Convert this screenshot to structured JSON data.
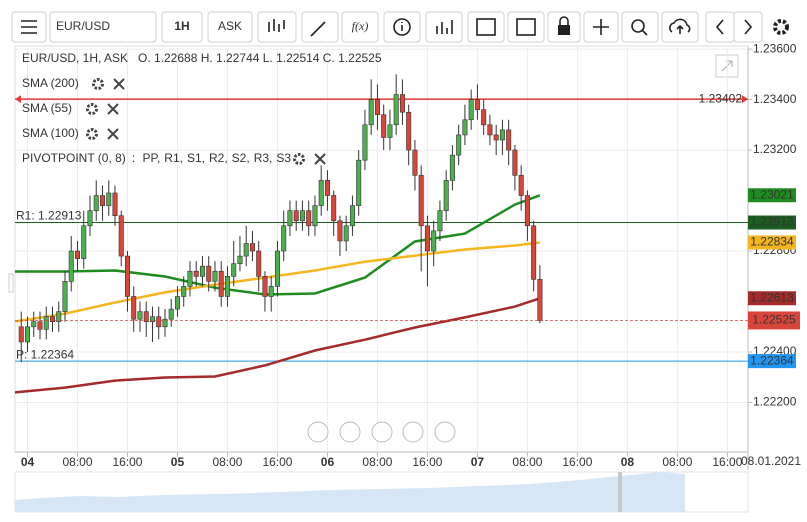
{
  "toolbar": {
    "symbol": "EUR/USD",
    "timeframe": "1H",
    "price_side": "ASK",
    "fx": "f(x)"
  },
  "chart_data": {
    "type": "candlestick",
    "title": "EUR/USD, 1H, ASK",
    "ohlc_text": "O. 1.22688 H. 1.22744 L. 1.22514 C. 1.22525",
    "up_color": "#4caf50",
    "down_color": "#d9453b",
    "x": [
      -1,
      0,
      1,
      2,
      3,
      4,
      5,
      6,
      7,
      8,
      9,
      10,
      11,
      12,
      13,
      14,
      15,
      16,
      17,
      18,
      19,
      20,
      21,
      22,
      23,
      24,
      25,
      26,
      27,
      28,
      29,
      30,
      31,
      32,
      33,
      34,
      35,
      36,
      37,
      38,
      39,
      40,
      41,
      42,
      43,
      44,
      45,
      46,
      47,
      48,
      49,
      50,
      51,
      52,
      53,
      54,
      55,
      56,
      57,
      58,
      59,
      60,
      61,
      62,
      63,
      64,
      65,
      66,
      67,
      68,
      69,
      70,
      71,
      72,
      73,
      74,
      75,
      76,
      77,
      78,
      79,
      80,
      81,
      82
    ],
    "open": [
      1.225,
      1.2244,
      1.225,
      1.2252,
      1.2249,
      1.2254,
      1.2252,
      1.2256,
      1.2268,
      1.228,
      1.2277,
      1.229,
      1.2296,
      1.2302,
      1.2298,
      1.2303,
      1.2294,
      1.2278,
      1.2262,
      1.2253,
      1.2256,
      1.2252,
      1.2254,
      1.225,
      1.2253,
      1.2257,
      1.2262,
      1.2266,
      1.2272,
      1.227,
      1.2274,
      1.2268,
      1.2272,
      1.2262,
      1.227,
      1.2275,
      1.2278,
      1.2283,
      1.228,
      1.227,
      1.2262,
      1.2266,
      1.228,
      1.229,
      1.2296,
      1.2292,
      1.2296,
      1.229,
      1.2298,
      1.2308,
      1.2302,
      1.2292,
      1.2284,
      1.229,
      1.2298,
      1.2316,
      1.233,
      1.234,
      1.2334,
      1.2325,
      1.233,
      1.2342,
      1.2335,
      1.232,
      1.231,
      1.229,
      1.228,
      1.2288,
      1.2296,
      1.2308,
      1.2318,
      1.2326,
      1.2332,
      1.234,
      1.2336,
      1.233,
      1.2326,
      1.2324,
      1.2328,
      1.232,
      1.231,
      1.2302,
      1.229,
      1.22688
    ],
    "high": [
      1.2256,
      1.2254,
      1.2256,
      1.2256,
      1.2258,
      1.2258,
      1.226,
      1.2272,
      1.2286,
      1.2284,
      1.2296,
      1.2302,
      1.2308,
      1.2306,
      1.2308,
      1.2306,
      1.2296,
      1.228,
      1.2266,
      1.226,
      1.226,
      1.2258,
      1.2258,
      1.2257,
      1.2261,
      1.2266,
      1.227,
      1.2276,
      1.2276,
      1.2278,
      1.2278,
      1.2276,
      1.2276,
      1.2274,
      1.2284,
      1.2286,
      1.229,
      1.2288,
      1.2284,
      1.2272,
      1.227,
      1.2284,
      1.2296,
      1.23,
      1.23,
      1.23,
      1.23,
      1.2302,
      1.2314,
      1.2312,
      1.2304,
      1.2294,
      1.2294,
      1.2302,
      1.232,
      1.2336,
      1.2348,
      1.2346,
      1.2338,
      1.2336,
      1.235,
      1.2348,
      1.2338,
      1.2324,
      1.2314,
      1.2294,
      1.2292,
      1.23,
      1.2312,
      1.2322,
      1.233,
      1.2338,
      1.2344,
      1.2346,
      1.234,
      1.2334,
      1.233,
      1.2332,
      1.2332,
      1.2322,
      1.2314,
      1.2304,
      1.2292,
      1.22744
    ],
    "low": [
      1.2236,
      1.224,
      1.2246,
      1.2245,
      1.2245,
      1.2248,
      1.2248,
      1.2252,
      1.2264,
      1.2272,
      1.2273,
      1.2286,
      1.2292,
      1.2292,
      1.2294,
      1.229,
      1.2274,
      1.2256,
      1.2248,
      1.2248,
      1.2246,
      1.2244,
      1.2245,
      1.2246,
      1.225,
      1.2254,
      1.2258,
      1.2262,
      1.2266,
      1.2266,
      1.2264,
      1.2264,
      1.2258,
      1.2258,
      1.2266,
      1.2272,
      1.2274,
      1.2276,
      1.2264,
      1.2256,
      1.2256,
      1.2262,
      1.2276,
      1.2286,
      1.2288,
      1.2288,
      1.2286,
      1.2286,
      1.2294,
      1.2296,
      1.2286,
      1.2278,
      1.228,
      1.2286,
      1.2294,
      1.2312,
      1.2326,
      1.2328,
      1.232,
      1.232,
      1.2326,
      1.233,
      1.2314,
      1.2304,
      1.2272,
      1.2266,
      1.2274,
      1.2284,
      1.2292,
      1.2304,
      1.2314,
      1.2322,
      1.2328,
      1.2332,
      1.2326,
      1.2322,
      1.2318,
      1.2318,
      1.2314,
      1.2304,
      1.2296,
      1.2284,
      1.2264,
      1.22514
    ],
    "close": [
      1.2244,
      1.225,
      1.2252,
      1.2249,
      1.2254,
      1.2252,
      1.2256,
      1.2268,
      1.228,
      1.2277,
      1.229,
      1.2296,
      1.2302,
      1.2298,
      1.2303,
      1.2294,
      1.2278,
      1.2262,
      1.2253,
      1.2256,
      1.2252,
      1.2254,
      1.225,
      1.2253,
      1.2257,
      1.2262,
      1.2266,
      1.2272,
      1.227,
      1.2274,
      1.2268,
      1.2272,
      1.2262,
      1.227,
      1.2275,
      1.2278,
      1.2283,
      1.228,
      1.227,
      1.2262,
      1.2266,
      1.228,
      1.229,
      1.2296,
      1.2292,
      1.2296,
      1.229,
      1.2298,
      1.2308,
      1.2302,
      1.2292,
      1.2284,
      1.229,
      1.2298,
      1.2316,
      1.233,
      1.234,
      1.2334,
      1.2325,
      1.233,
      1.2342,
      1.2335,
      1.232,
      1.231,
      1.229,
      1.228,
      1.2288,
      1.2296,
      1.2308,
      1.2318,
      1.2326,
      1.2332,
      1.234,
      1.2336,
      1.233,
      1.2326,
      1.2324,
      1.2328,
      1.232,
      1.231,
      1.2302,
      1.229,
      1.22688,
      1.22525
    ],
    "current_color": "#d9453b",
    "series": [
      {
        "name": "SMA (200)",
        "color": "#a52a2a",
        "x": [
          -2,
          6,
          14,
          22,
          30,
          38,
          46,
          54,
          62,
          70,
          78,
          82
        ],
        "values": [
          1.2224,
          1.22259,
          1.22287,
          1.22299,
          1.22303,
          1.22347,
          1.22406,
          1.22449,
          1.22497,
          1.22537,
          1.2258,
          1.22613
        ]
      },
      {
        "name": "SMA (55)",
        "color": "#1e8c1e",
        "x": [
          -2,
          6,
          14,
          22,
          30,
          38,
          46,
          54,
          62,
          70,
          78,
          82
        ],
        "values": [
          1.22719,
          1.22719,
          1.22723,
          1.22699,
          1.22655,
          1.22628,
          1.22632,
          1.22695,
          1.22838,
          1.22869,
          1.22984,
          1.23021
        ]
      },
      {
        "name": "SMA (100)",
        "color": "#f5b51f",
        "x": [
          -2,
          6,
          14,
          22,
          30,
          38,
          46,
          54,
          62,
          70,
          78,
          82
        ],
        "values": [
          1.22521,
          1.22552,
          1.22596,
          1.22636,
          1.22667,
          1.22695,
          1.22723,
          1.22758,
          1.22782,
          1.22806,
          1.22822,
          1.22834
        ]
      }
    ],
    "pivot": {
      "name": "PIVOTPOINT (0, 8)",
      "items": [
        {
          "text": ": ",
          "color": "#333333"
        },
        {
          "text": "PP,",
          "color": "#2196f3"
        },
        {
          "text": "R1,",
          "color": "#1b5e20"
        },
        {
          "text": "S1,",
          "color": "#e53935"
        },
        {
          "text": "R2,",
          "color": "#e53935"
        },
        {
          "text": "S2,",
          "color": "#ff9800"
        },
        {
          "text": "R3,",
          "color": "#ff9800"
        },
        {
          "text": "S3",
          "color": "#e6b800"
        }
      ]
    },
    "levels": [
      {
        "value": 1.23402,
        "color": "#e53935"
      },
      {
        "label": "R1: 1.22913",
        "value": 1.22913,
        "color": "#1b5e20"
      },
      {
        "label": "P: 1.22364",
        "value": 1.22364,
        "color": "#2196f3"
      }
    ],
    "xlim": [
      -2,
      115.3
    ],
    "xticks": [
      {
        "value": 0,
        "label": "04"
      },
      {
        "value": 8,
        "label": "08:00"
      },
      {
        "value": 16,
        "label": "16:00"
      },
      {
        "value": 24,
        "label": "05"
      },
      {
        "value": 32,
        "label": "08:00"
      },
      {
        "value": 40,
        "label": "16:00"
      },
      {
        "value": 48,
        "label": "06"
      },
      {
        "value": 56,
        "label": "08:00"
      },
      {
        "value": 64,
        "label": "16:00"
      },
      {
        "value": 72,
        "label": "07"
      },
      {
        "value": 80,
        "label": "08:00"
      },
      {
        "value": 88,
        "label": "16:00"
      },
      {
        "value": 96,
        "label": "08"
      },
      {
        "value": 104,
        "label": "08:00"
      },
      {
        "value": 112,
        "label": "16:00"
      }
    ],
    "date_label": "08.01.2021",
    "ylim": [
      1.22,
      1.2364
    ],
    "yticks": [
      {
        "value": 1.236,
        "label": "1.23600"
      },
      {
        "value": 1.234,
        "label": "1.23400"
      },
      {
        "value": 1.232,
        "label": "1.23200"
      },
      {
        "value": 1.228,
        "label": "1.22800"
      },
      {
        "value": 1.224,
        "label": "1.22400"
      },
      {
        "value": 1.222,
        "label": "1.22200"
      }
    ],
    "grid": true
  }
}
